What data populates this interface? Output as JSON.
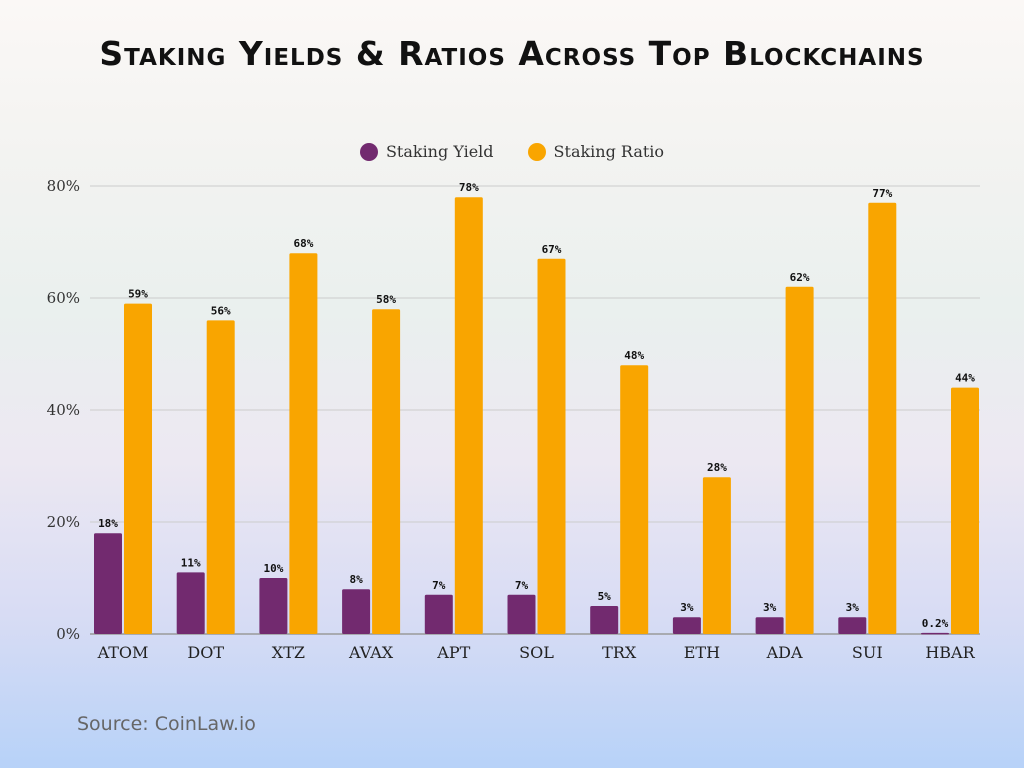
{
  "chart_data": {
    "type": "bar",
    "title": "Staking Yields & Ratios Across Top Blockchains",
    "categories": [
      "ATOM",
      "DOT",
      "XTZ",
      "AVAX",
      "APT",
      "SOL",
      "TRX",
      "ETH",
      "ADA",
      "SUI",
      "HBAR"
    ],
    "series": [
      {
        "name": "Staking Yield",
        "color": "#722a6f",
        "values": [
          18,
          11,
          10,
          8,
          7,
          7,
          5,
          3,
          3,
          3,
          0.2
        ],
        "labels": [
          "18%",
          "11%",
          "10%",
          "8%",
          "7%",
          "7%",
          "5%",
          "3%",
          "3%",
          "3%",
          "0.2%"
        ]
      },
      {
        "name": "Staking Ratio",
        "color": "#f9a500",
        "values": [
          59,
          56,
          68,
          58,
          78,
          67,
          48,
          28,
          62,
          77,
          44
        ],
        "labels": [
          "59%",
          "56%",
          "68%",
          "58%",
          "78%",
          "67%",
          "48%",
          "28%",
          "62%",
          "77%",
          "44%"
        ]
      }
    ],
    "ylim": [
      0,
      80
    ],
    "yticks": [
      "0%",
      "20%",
      "40%",
      "60%",
      "80%"
    ],
    "grid": true,
    "legend": "top-center",
    "xlabel": "",
    "ylabel": ""
  },
  "source": "Source: CoinLaw.io"
}
